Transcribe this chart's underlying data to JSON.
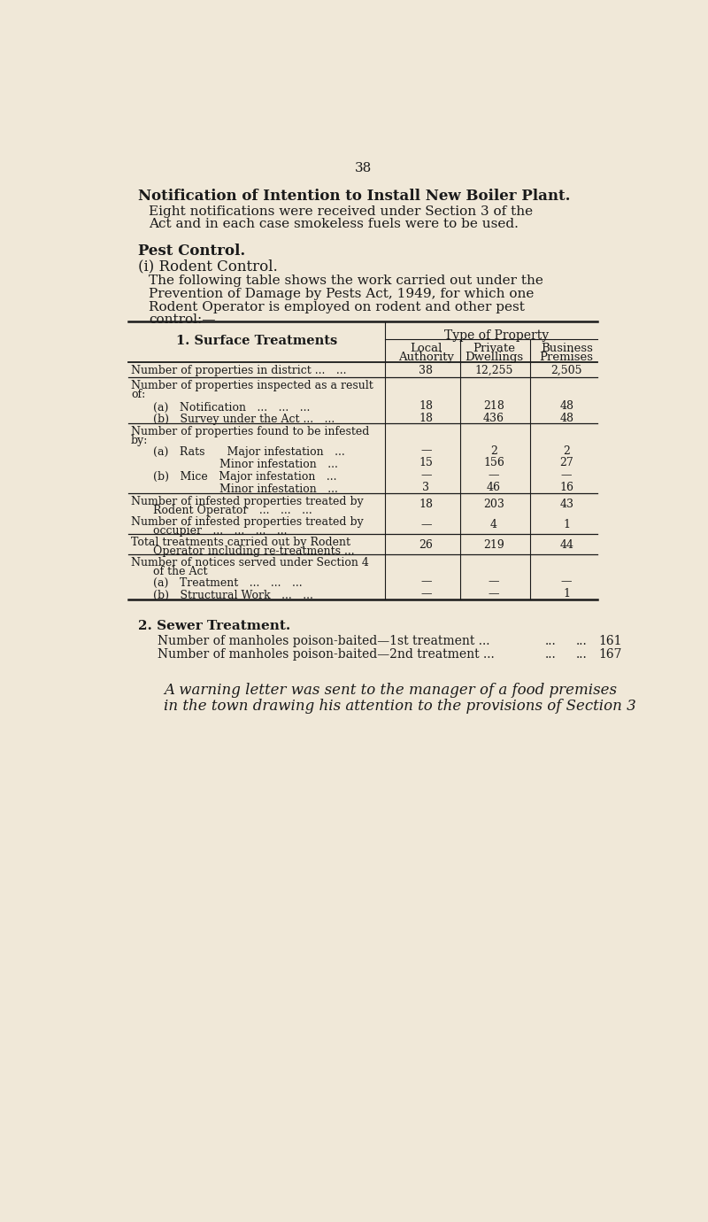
{
  "bg_color": "#f0e8d8",
  "text_color": "#1a1a1a",
  "page_number": "38",
  "title": "Notification of Intention to Install New Boiler Plant.",
  "para1_lines": [
    "Eight notifications were received under Section 3 of the",
    "Act and in each case smokeless fuels were to be used."
  ],
  "section_heading": "Pest Control.",
  "sub_heading": "(i) Rodent Control.",
  "para2_lines": [
    "The following table shows the work carried out under the",
    "Prevention of Damage by Pests Act, 1949, for which one",
    "Rodent Operator is employed on rodent and other pest",
    "control:—"
  ],
  "table_header_main": "1. Surface Treatments",
  "table_subheader": "Type of Property",
  "col_headers": [
    "Local\nAuthority",
    "Private\nDwellings",
    "Business\nPremises"
  ],
  "rows": [
    {
      "label": "Number of properties in district ... ...",
      "label2": "",
      "values": [
        "38",
        "12,255",
        "2,505"
      ],
      "sep_after": true,
      "rh": 22
    },
    {
      "label": "Number of properties inspected as a result",
      "label2": "of:",
      "values": [
        "",
        "",
        ""
      ],
      "sep_after": false,
      "rh": 32
    },
    {
      "label": "  (a) Notification ... ... ...",
      "label2": "",
      "values": [
        "18",
        "218",
        "48"
      ],
      "sep_after": false,
      "rh": 18
    },
    {
      "label": "  (b) Survey under the Act ... ...",
      "label2": "",
      "values": [
        "18",
        "436",
        "48"
      ],
      "sep_after": true,
      "rh": 18
    },
    {
      "label": "Number of properties found to be infested",
      "label2": "by:",
      "values": [
        "",
        "",
        ""
      ],
      "sep_after": false,
      "rh": 30
    },
    {
      "label": "  (a) Rats  Major infestation ...",
      "label2": "",
      "values": [
        "—",
        "2",
        "2"
      ],
      "sep_after": false,
      "rh": 18
    },
    {
      "label": "        Minor infestation ...",
      "label2": "",
      "values": [
        "15",
        "156",
        "27"
      ],
      "sep_after": false,
      "rh": 18
    },
    {
      "label": "  (b) Mice Major infestation ...",
      "label2": "",
      "values": [
        "—",
        "—",
        "—"
      ],
      "sep_after": false,
      "rh": 18
    },
    {
      "label": "        Minor infestation ...",
      "label2": "",
      "values": [
        "3",
        "46",
        "16"
      ],
      "sep_after": true,
      "rh": 18
    },
    {
      "label": "Number of infested properties treated by",
      "label2": "  Rodent Operator ... ... ...",
      "values": [
        "18",
        "203",
        "43"
      ],
      "sep_after": false,
      "rh": 30
    },
    {
      "label": "Number of infested properties treated by",
      "label2": "  occupier ... ... ... ...",
      "values": [
        "—",
        "4",
        "1"
      ],
      "sep_after": true,
      "rh": 30
    },
    {
      "label": "Total treatments carried out by Rodent",
      "label2": "  Operator including re-treatments ...",
      "values": [
        "26",
        "219",
        "44"
      ],
      "sep_after": true,
      "rh": 30
    },
    {
      "label": "Number of notices served under Section 4",
      "label2": "  of the Act",
      "values": [
        "",
        "",
        ""
      ],
      "sep_after": false,
      "rh": 30
    },
    {
      "label": "  (a) Treatment ... ... ...",
      "label2": "",
      "values": [
        "—",
        "—",
        "—"
      ],
      "sep_after": false,
      "rh": 18
    },
    {
      "label": "  (b) Structural Work ... ...",
      "label2": "",
      "values": [
        "—",
        "—",
        "1"
      ],
      "sep_after": false,
      "rh": 18
    }
  ],
  "sewer_heading": "2. Sewer Treatment.",
  "sewer_line1_label": "Number of manholes poison-baited—1st treatment ...",
  "sewer_line1_dots": "...  ...",
  "sewer_line1_val": "161",
  "sewer_line2_label": "Number of manholes poison-baited—2nd treatment ...",
  "sewer_line2_dots": "...  ...",
  "sewer_line2_val": "167",
  "footer_lines": [
    "A warning letter was sent to the manager of a food premises",
    "in the town drawing his attention to the provisions of Section 3"
  ]
}
